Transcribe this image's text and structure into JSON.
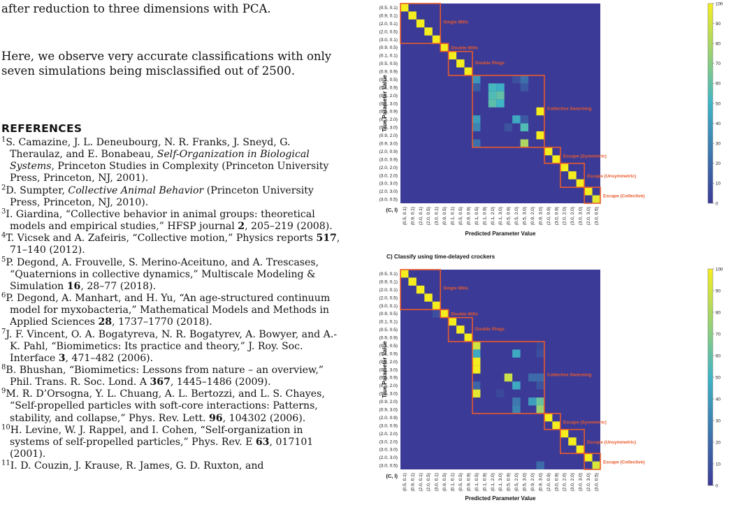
{
  "text": {
    "para1": "after reduction to three dimensions with PCA.",
    "para2": "Here, we observe very accurate classifications with only seven simulations being misclassified out of 2500.",
    "refs_heading": "REFERENCES",
    "references": [
      {
        "n": "1",
        "parts": [
          {
            "t": "S. Camazine, J. L. Deneubourg, N. R. Franks, J. Sneyd, G. Theraulaz,  and E. Bonabeau, "
          },
          {
            "t": "Self-Organization in Biological Systems",
            "s": "i"
          },
          {
            "t": ", Princeton Studies in Complexity (Princeton University Press, Princeton, NJ, 2001)."
          }
        ]
      },
      {
        "n": "2",
        "parts": [
          {
            "t": "D. Sumpter, "
          },
          {
            "t": "Collective Animal Behavior",
            "s": "i"
          },
          {
            "t": " (Princeton University Press, Princeton, NJ, 2010)."
          }
        ]
      },
      {
        "n": "3",
        "parts": [
          {
            "t": "I. Giardina, “Collective behavior in animal groups: theoretical models and empirical studies,” HFSP journal "
          },
          {
            "t": "2",
            "s": "b"
          },
          {
            "t": ", 205–219 (2008)."
          }
        ]
      },
      {
        "n": "4",
        "parts": [
          {
            "t": "T. Vicsek and A. Zafeiris, “Collective motion,” Physics reports "
          },
          {
            "t": "517",
            "s": "b"
          },
          {
            "t": ", 71–140 (2012)."
          }
        ]
      },
      {
        "n": "5",
        "parts": [
          {
            "t": "P. Degond, A. Frouvelle, S. Merino-Aceituno,  and A. Trescases, “Quaternions in collective dynamics,” Multiscale Modeling & Simulation "
          },
          {
            "t": "16",
            "s": "b"
          },
          {
            "t": ", 28–77 (2018)."
          }
        ]
      },
      {
        "n": "6",
        "parts": [
          {
            "t": "P. Degond, A. Manhart,  and H. Yu, “An age-structured continuum model for myxobacteria,” Mathematical Models and Methods in Applied Sciences "
          },
          {
            "t": "28",
            "s": "b"
          },
          {
            "t": ", 1737–1770 (2018)."
          }
        ]
      },
      {
        "n": "7",
        "parts": [
          {
            "t": "J. F. Vincent, O. A. Bogatyreva, N. R. Bogatyrev, A. Bowyer, and A.-K. Pahl, “Biomimetics: Its practice and theory,” J. Roy. Soc. Interface "
          },
          {
            "t": "3",
            "s": "b"
          },
          {
            "t": ", 471–482 (2006)."
          }
        ]
      },
      {
        "n": "8",
        "parts": [
          {
            "t": "B. Bhushan, “Biomimetics: Lessons from nature – an overview,” Phil. Trans. R. Soc. Lond. A "
          },
          {
            "t": "367",
            "s": "b"
          },
          {
            "t": ", 1445–1486 (2009)."
          }
        ]
      },
      {
        "n": "9",
        "parts": [
          {
            "t": "M. R. D’Orsogna, Y. L. Chuang, A. L. Bertozzi,  and L. S. Chayes, “Self-propelled particles with soft-core interactions: Patterns, stability, and collapse,” Phys. Rev. Lett. "
          },
          {
            "t": "96",
            "s": "b"
          },
          {
            "t": ", 104302 (2006)."
          }
        ]
      },
      {
        "n": "10",
        "parts": [
          {
            "t": "H. Levine, W. J. Rappel,  and I. Cohen, “Self-organization in systems of self-propelled particles,” Phys. Rev. E "
          },
          {
            "t": "63",
            "s": "b"
          },
          {
            "t": ", 017101 (2001)."
          }
        ]
      },
      {
        "n": "11",
        "parts": [
          {
            "t": "I. D. Couzin, J. Krause, R. James, G. D. Ruxton,  and"
          }
        ]
      }
    ]
  },
  "figure": {
    "labels": [
      "(0.5, 0.1)",
      "(0.9, 0.1)",
      "(2.0, 0.1)",
      "(2.0, 0.5)",
      "(3.0, 0.1)",
      "(0.9, 0.5)",
      "(0.1, 0.1)",
      "(0.5, 0.5)",
      "(0.9, 0.9)",
      "(0.1, 0.5)",
      "(0.1, 0.9)",
      "(0.1, 2.0)",
      "(0.1, 3.0)",
      "(0.5, 0.9)",
      "(0.5, 2.0)",
      "(0.5, 3.0)",
      "(0.9, 2.0)",
      "(0.9, 3.0)",
      "(2.0, 0.9)",
      "(3.0, 0.9)",
      "(2.0, 2.0)",
      "(3.0, 2.0)",
      "(3.0, 3.0)",
      "(2.0, 3.0)",
      "(3.0, 0.5)"
    ],
    "axis_corner_label": "(C, l)",
    "groups": [
      {
        "name": "Single Mills",
        "start": 0,
        "end": 4
      },
      {
        "name": "Double Mills",
        "start": 5,
        "end": 5
      },
      {
        "name": "Double Rings",
        "start": 6,
        "end": 8
      },
      {
        "name": "Collective Swarming",
        "start": 9,
        "end": 17
      },
      {
        "name": "Escape (Symmetric)",
        "start": 18,
        "end": 19
      },
      {
        "name": "Escape (Unsymmetric)",
        "start": 20,
        "end": 22
      },
      {
        "name": "Escape (Collective)",
        "start": 23,
        "end": 24
      }
    ],
    "colorbar_ticks": [
      0,
      10,
      20,
      30,
      40,
      50,
      60,
      70,
      80,
      90,
      100
    ],
    "colors": {
      "low": "#3b3a96",
      "mid": "#3fb5c6",
      "high": "#f5ee1f",
      "box": "#e85a2c"
    }
  },
  "chart_data": [
    {
      "type": "heatmap",
      "title": "",
      "xlabel": "Predicted Parameter Value",
      "ylabel": "True Parameter Value",
      "zlim": [
        0,
        100
      ],
      "cells": [
        [
          0,
          0,
          100
        ],
        [
          1,
          1,
          100
        ],
        [
          2,
          2,
          100
        ],
        [
          3,
          3,
          100
        ],
        [
          4,
          4,
          100
        ],
        [
          5,
          5,
          100
        ],
        [
          6,
          6,
          100
        ],
        [
          7,
          7,
          100
        ],
        [
          8,
          8,
          100
        ],
        [
          9,
          9,
          38
        ],
        [
          9,
          14,
          8
        ],
        [
          9,
          15,
          22
        ],
        [
          10,
          9,
          14
        ],
        [
          10,
          11,
          52
        ],
        [
          10,
          12,
          48
        ],
        [
          10,
          15,
          12
        ],
        [
          11,
          11,
          55
        ],
        [
          11,
          12,
          60
        ],
        [
          12,
          11,
          58
        ],
        [
          12,
          12,
          50
        ],
        [
          13,
          17,
          100
        ],
        [
          14,
          9,
          40
        ],
        [
          14,
          14,
          45
        ],
        [
          14,
          15,
          12
        ],
        [
          15,
          9,
          30
        ],
        [
          15,
          13,
          10
        ],
        [
          15,
          15,
          55
        ],
        [
          16,
          17,
          100
        ],
        [
          17,
          9,
          22
        ],
        [
          17,
          15,
          80
        ],
        [
          18,
          18,
          100
        ],
        [
          19,
          19,
          100
        ],
        [
          20,
          20,
          100
        ],
        [
          21,
          21,
          100
        ],
        [
          22,
          22,
          100
        ],
        [
          23,
          23,
          100
        ],
        [
          24,
          24,
          95
        ]
      ]
    },
    {
      "type": "heatmap",
      "title": "C) Classify using time-delayed crockers",
      "xlabel": "Predicted Parameter Value",
      "ylabel": "True Parameter Value",
      "zlim": [
        0,
        100
      ],
      "cells": [
        [
          0,
          0,
          100
        ],
        [
          1,
          1,
          100
        ],
        [
          2,
          2,
          100
        ],
        [
          3,
          3,
          100
        ],
        [
          4,
          4,
          100
        ],
        [
          5,
          4,
          8
        ],
        [
          5,
          5,
          100
        ],
        [
          6,
          6,
          100
        ],
        [
          7,
          7,
          100
        ],
        [
          8,
          8,
          100
        ],
        [
          9,
          9,
          90
        ],
        [
          9,
          17,
          5
        ],
        [
          10,
          9,
          45
        ],
        [
          10,
          14,
          45
        ],
        [
          10,
          17,
          8
        ],
        [
          11,
          9,
          100
        ],
        [
          12,
          9,
          100
        ],
        [
          13,
          13,
          88
        ],
        [
          13,
          16,
          20
        ],
        [
          13,
          17,
          20
        ],
        [
          14,
          9,
          18
        ],
        [
          14,
          14,
          45
        ],
        [
          14,
          17,
          10
        ],
        [
          15,
          9,
          95
        ],
        [
          15,
          12,
          6
        ],
        [
          16,
          14,
          25
        ],
        [
          16,
          16,
          40
        ],
        [
          16,
          17,
          62
        ],
        [
          17,
          14,
          30
        ],
        [
          17,
          17,
          75
        ],
        [
          18,
          18,
          100
        ],
        [
          19,
          19,
          100
        ],
        [
          20,
          20,
          100
        ],
        [
          21,
          21,
          100
        ],
        [
          22,
          22,
          100
        ],
        [
          23,
          23,
          100
        ],
        [
          24,
          17,
          20
        ],
        [
          24,
          24,
          92
        ]
      ]
    }
  ]
}
